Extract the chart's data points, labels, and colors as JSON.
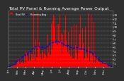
{
  "title": "Total PV Panel & Running Average Power Output",
  "legend_line1": "Total PV",
  "legend_line2": "Running Avg",
  "bg_color": "#2f2f2f",
  "plot_bg_color": "#2f2f2f",
  "bar_color": "#ff0000",
  "avg_color": "#0000ff",
  "grid_color": "#666666",
  "text_color": "#ffffff",
  "ylim": [
    0,
    14
  ],
  "ytick_vals": [
    1,
    2,
    3,
    4,
    5,
    6,
    7,
    8,
    9,
    10,
    11,
    12,
    13
  ],
  "n_bars": 365,
  "title_fontsize": 4.2,
  "tick_fontsize": 2.8,
  "legend_fontsize": 2.5,
  "avg_window": 40
}
